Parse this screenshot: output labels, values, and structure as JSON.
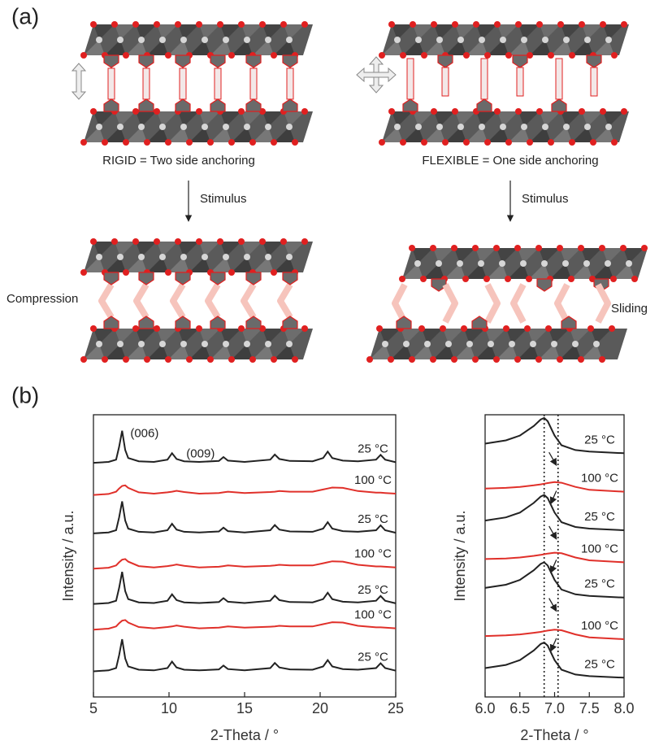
{
  "panel_a": {
    "label": "(a)",
    "rigid_caption": "RIGID = Two side anchoring",
    "flexible_caption": "FLEXIBLE = One side anchoring",
    "stimulus_left": "Stimulus",
    "stimulus_right": "Stimulus",
    "compression": "Compression",
    "sliding": "Sliding"
  },
  "panel_b": {
    "label": "(b)"
  },
  "chart_data": [
    {
      "type": "line",
      "x_label": "2-Theta / °",
      "y_label": "Intensity / a.u.",
      "xlim": [
        5,
        25
      ],
      "xticks": [
        5,
        10,
        15,
        20,
        25
      ],
      "ylim": [
        12,
        100
      ],
      "annotations": [
        "(006)",
        "(009)"
      ],
      "x": [
        5,
        6,
        6.5,
        6.7,
        6.9,
        7.1,
        7.3,
        8,
        9,
        9.9,
        10.2,
        10.5,
        11,
        12,
        13.3,
        13.6,
        13.9,
        15,
        16.7,
        17,
        17.3,
        18,
        19.5,
        20.2,
        20.5,
        20.8,
        21.5,
        22.5,
        23.7,
        24,
        24.3,
        25
      ],
      "series": [
        {
          "name": "25 °C",
          "color": "#222222",
          "values": [
            85,
            85.3,
            86,
            90,
            95,
            89,
            86.5,
            85.5,
            85.3,
            86,
            88,
            86.2,
            85.5,
            85.3,
            85.6,
            86.8,
            85.7,
            85.3,
            86,
            87.6,
            86.2,
            85.6,
            85.5,
            86.5,
            88.5,
            86.5,
            85.7,
            85.5,
            86,
            87.5,
            86,
            85.2
          ]
        },
        {
          "name": "100 °C",
          "color": "#e0302a",
          "values": [
            75,
            75.3,
            76,
            77,
            77.8,
            78,
            77.2,
            75.8,
            75.4,
            75.8,
            76,
            76.3,
            75.9,
            75.4,
            75.6,
            75.8,
            76,
            75.6,
            75.9,
            76,
            76.2,
            76,
            76,
            76.7,
            77,
            77.3,
            77.2,
            76.2,
            75.7,
            75.7,
            75.6,
            75.4
          ]
        },
        {
          "name": "25 °C",
          "color": "#222222",
          "values": [
            63,
            63.3,
            64,
            68,
            73,
            67,
            64.5,
            63.5,
            63.3,
            64,
            66,
            64.2,
            63.5,
            63.3,
            63.6,
            64.8,
            63.7,
            63.3,
            64,
            65.6,
            64.2,
            63.6,
            63.5,
            64.5,
            66.5,
            64.5,
            63.7,
            63.5,
            64,
            65.5,
            64,
            63.2
          ]
        },
        {
          "name": "100 °C",
          "color": "#e0302a",
          "values": [
            52,
            52.3,
            53,
            54,
            54.8,
            55,
            54.2,
            52.8,
            52.4,
            52.8,
            53,
            53.3,
            52.9,
            52.4,
            52.6,
            52.8,
            53,
            52.6,
            52.9,
            53,
            53.2,
            53,
            53,
            53.7,
            54,
            54.3,
            54.2,
            53.2,
            52.7,
            52.7,
            52.6,
            52.4
          ]
        },
        {
          "name": "25 °C",
          "color": "#222222",
          "values": [
            41,
            41.3,
            42,
            46,
            51,
            45,
            42.5,
            41.5,
            41.3,
            42,
            44,
            42.2,
            41.5,
            41.3,
            41.6,
            42.8,
            41.7,
            41.3,
            42,
            43.6,
            42.2,
            41.6,
            41.5,
            42.5,
            44.5,
            42.5,
            41.7,
            41.5,
            42,
            43.5,
            42,
            41.2
          ]
        },
        {
          "name": "100 °C",
          "color": "#e0302a",
          "values": [
            33,
            33.3,
            34,
            35,
            35.8,
            36,
            35.2,
            33.8,
            33.4,
            33.8,
            34,
            34.3,
            33.9,
            33.4,
            33.6,
            33.8,
            34,
            33.6,
            33.9,
            34,
            34.2,
            34,
            34,
            34.7,
            35,
            35.3,
            35.2,
            34.2,
            33.7,
            33.7,
            33.6,
            33.4
          ]
        },
        {
          "name": "25 °C",
          "color": "#222222",
          "values": [
            20,
            20.3,
            21,
            25,
            30,
            24,
            21.5,
            20.5,
            20.3,
            21,
            23,
            21.2,
            20.5,
            20.3,
            20.6,
            21.8,
            20.7,
            20.3,
            21,
            22.6,
            21.2,
            20.6,
            20.5,
            21.5,
            23.5,
            21.5,
            20.7,
            20.5,
            21,
            22.5,
            21,
            20.2
          ]
        }
      ]
    },
    {
      "type": "line",
      "x_label": "2-Theta / °",
      "y_label": "Intensity / a.u.",
      "xlim": [
        6,
        8
      ],
      "xticks": [
        {
          "value": 6,
          "label": "6.0"
        },
        6.5,
        {
          "value": 7,
          "label": "7.0"
        },
        7.5,
        {
          "value": 8,
          "label": "8.0"
        }
      ],
      "ylim": [
        12,
        100
      ],
      "vlines": [
        6.85,
        7.05
      ],
      "x": [
        6,
        6.3,
        6.5,
        6.7,
        6.8,
        6.85,
        6.9,
        7,
        7.1,
        7.3,
        7.5,
        8
      ],
      "series": [
        {
          "name": "25 °C",
          "color": "#222222",
          "values": [
            91,
            92,
            93.5,
            96.5,
            98.5,
            99,
            98,
            93.5,
            90.5,
            89,
            88.5,
            88
          ]
        },
        {
          "name": "100 °C",
          "color": "#e0302a",
          "values": [
            77,
            77.2,
            77.5,
            78,
            78.3,
            78.5,
            78.7,
            79,
            78.8,
            77.5,
            76.6,
            76
          ]
        },
        {
          "name": "25 °C",
          "color": "#222222",
          "values": [
            67,
            68,
            69.5,
            72.5,
            74.5,
            75,
            74,
            69.5,
            66.5,
            65,
            64.5,
            64
          ]
        },
        {
          "name": "100 °C",
          "color": "#e0302a",
          "values": [
            55,
            55.2,
            55.5,
            56,
            56.3,
            56.5,
            56.7,
            57,
            56.8,
            55.5,
            54.6,
            54
          ]
        },
        {
          "name": "25 °C",
          "color": "#222222",
          "values": [
            46,
            47,
            48.5,
            51.5,
            53.5,
            54,
            53,
            48.5,
            45.5,
            44,
            43.5,
            43
          ]
        },
        {
          "name": "100 °C",
          "color": "#e0302a",
          "values": [
            31,
            31.2,
            31.5,
            32,
            32.3,
            32.5,
            32.7,
            33,
            32.8,
            31.5,
            30.6,
            30
          ]
        },
        {
          "name": "25 °C",
          "color": "#222222",
          "values": [
            21,
            22,
            23.5,
            26.5,
            28.5,
            29,
            28,
            23.5,
            20.5,
            19,
            18.5,
            18
          ]
        }
      ]
    }
  ]
}
